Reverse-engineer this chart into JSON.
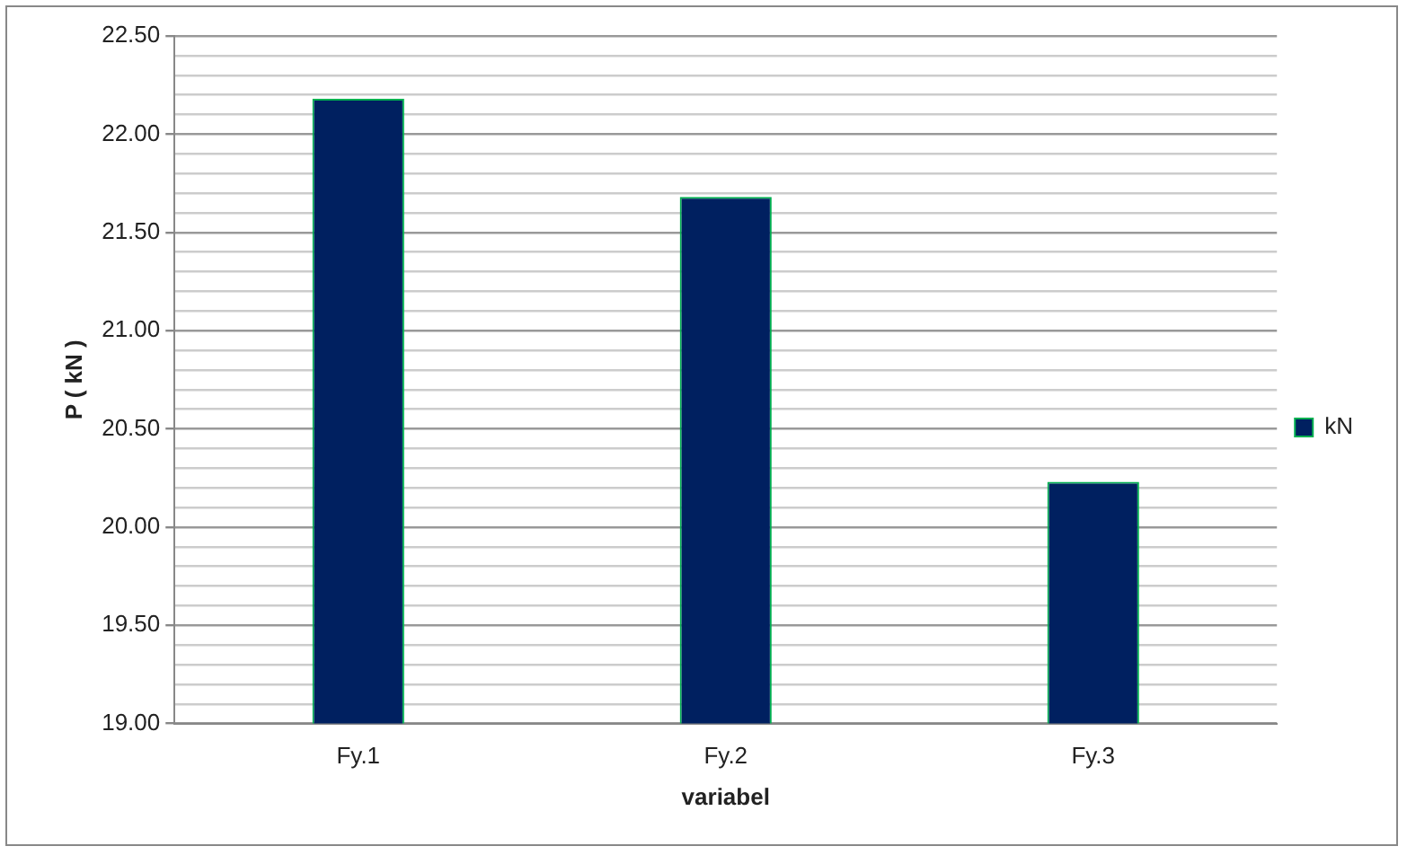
{
  "chart_data": {
    "type": "bar",
    "xlabel": "variabel",
    "ylabel": "P ( kN )",
    "categories": [
      "Fy.1",
      "Fy.2",
      "Fy.3"
    ],
    "series": [
      {
        "name": "kN",
        "color": "#002060",
        "values": [
          22.18,
          21.68,
          20.23
        ]
      }
    ],
    "ylim": [
      19,
      22.5
    ],
    "yticks": [
      "19.00",
      {
        "value": 19.1,
        "label": null
      },
      {
        "value": 19.2,
        "label": null
      },
      {
        "value": 19.3,
        "label": null
      },
      {
        "value": 19.4,
        "label": null
      },
      {
        "value": 19.5,
        "label": "19.50"
      },
      {
        "value": 19.6,
        "label": null
      },
      {
        "value": 19.7,
        "label": null
      },
      {
        "value": 19.8,
        "label": null
      },
      {
        "value": 19.9,
        "label": null
      },
      {
        "value": 20,
        "label": "20.00"
      },
      {
        "value": 20.1,
        "label": null
      },
      {
        "value": 20.2,
        "label": null
      },
      {
        "value": 20.3,
        "label": null
      },
      {
        "value": 20.4,
        "label": null
      },
      {
        "value": 20.5,
        "label": "20.50"
      },
      {
        "value": 20.6,
        "label": null
      },
      {
        "value": 20.7,
        "label": null
      },
      {
        "value": 20.8,
        "label": null
      },
      {
        "value": 20.9,
        "label": null
      },
      {
        "value": 21,
        "label": "21.00"
      },
      {
        "value": 21.1,
        "label": null
      },
      {
        "value": 21.2,
        "label": null
      },
      {
        "value": 21.3,
        "label": null
      },
      {
        "value": 21.4,
        "label": null
      },
      {
        "value": 21.5,
        "label": "21.50"
      },
      {
        "value": 21.6,
        "label": null
      },
      {
        "value": 21.7,
        "label": null
      },
      {
        "value": 21.8,
        "label": null
      },
      {
        "value": 21.9,
        "label": null
      },
      {
        "value": 22,
        "label": "22.00"
      },
      {
        "value": 22.1,
        "label": null
      },
      {
        "value": 22.2,
        "label": null
      },
      {
        "value": 22.3,
        "label": null
      },
      {
        "value": 22.4,
        "label": null
      },
      {
        "value": 22.5,
        "label": "22.50"
      }
    ],
    "grid": "y",
    "legend": "right"
  }
}
